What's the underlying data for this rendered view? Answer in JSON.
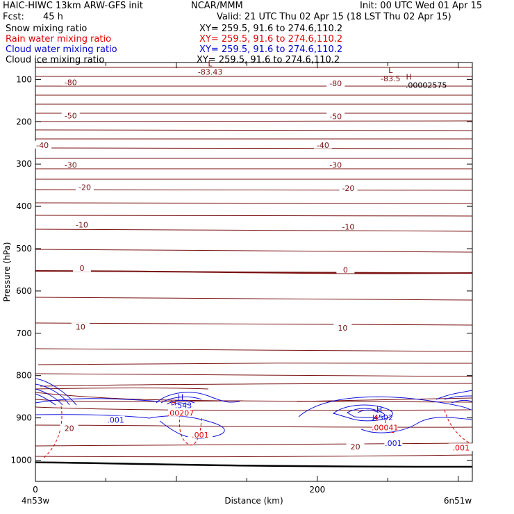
{
  "header": {
    "title": "HAIC-HIWC 13km ARW-GFS init",
    "org": "NCAR/MMM",
    "init": "Init: 00 UTC Wed 01 Apr 15",
    "fcst_label": "Fcst:",
    "fcst_value": "45 h",
    "valid": "Valid: 21 UTC Thu 02 Apr 15 (18 LST Thu 02 Apr 15)",
    "fields": [
      {
        "name": "Snow mixing ratio",
        "xy": "XY= 259.5, 91.6 to 274.6,110.2",
        "color": "#000000"
      },
      {
        "name": "Rain water mixing ratio",
        "xy": "XY= 259.5, 91.6 to 274.6,110.2",
        "color": "#e00000"
      },
      {
        "name": "Cloud water mixing ratio",
        "xy": "XY= 259.5, 91.6 to 274.6,110.2",
        "color": "#0000d0"
      },
      {
        "name": "Cloud ice mixing ratio",
        "xy": "XY= 259.5, 91.6 to 274.6,110.2",
        "color": "#000000"
      }
    ]
  },
  "chart_data": {
    "type": "contour",
    "xlabel": "Distance (km)",
    "ylabel": "Pressure (hPa)",
    "x_ticks": [
      "0",
      "200"
    ],
    "x_start_label": "4n53w",
    "x_end_label": "6n51w",
    "xlim": [
      0,
      310
    ],
    "y_ticks": [
      "100",
      "200",
      "300",
      "400",
      "500",
      "600",
      "700",
      "800",
      "900",
      "1000"
    ],
    "ylim": [
      1050,
      60
    ],
    "temperature_contours": {
      "color": "#7a1010",
      "labeled_levels": [
        -80,
        -50,
        -40,
        -30,
        -20,
        -10,
        0,
        10,
        20
      ],
      "labels": [
        {
          "text": "-80",
          "x": 25,
          "p": 107
        },
        {
          "text": "-80",
          "x": 213,
          "p": 109
        },
        {
          "text": "-50",
          "x": 25,
          "p": 186
        },
        {
          "text": "-50",
          "x": 213,
          "p": 187
        },
        {
          "text": "-40",
          "x": 5,
          "p": 255
        },
        {
          "text": "-40",
          "x": 204,
          "p": 255
        },
        {
          "text": "-30",
          "x": 25,
          "p": 302
        },
        {
          "text": "-30",
          "x": 213,
          "p": 302
        },
        {
          "text": "-20",
          "x": 35,
          "p": 355
        },
        {
          "text": "-20",
          "x": 222,
          "p": 357
        },
        {
          "text": "-10",
          "x": 33,
          "p": 443
        },
        {
          "text": "-10",
          "x": 222,
          "p": 448
        },
        {
          "text": "0",
          "x": 33,
          "p": 546
        },
        {
          "text": "0",
          "x": 220,
          "p": 550
        },
        {
          "text": "10",
          "x": 32,
          "p": 685
        },
        {
          "text": "10",
          "x": 218,
          "p": 687
        },
        {
          "text": "20",
          "x": 24,
          "p": 924
        },
        {
          "text": "20",
          "x": 227,
          "p": 968
        }
      ],
      "extrema": [
        {
          "type": "L",
          "value": "-83.43",
          "x": 124,
          "p": 69
        },
        {
          "type": "L",
          "value": "-83.5",
          "x": 252,
          "p": 85
        },
        {
          "type": "H",
          "value": ".00002575",
          "x": 265,
          "p": 100
        }
      ]
    },
    "cloud_water": {
      "color": "#1010e0",
      "labels": [
        {
          "text": ".001",
          "x": 57,
          "p": 905
        },
        {
          "text": ".001",
          "x": 254,
          "p": 960
        }
      ],
      "maxima": [
        {
          "type": "H",
          "value": ".543",
          "x": 103,
          "p": 857
        },
        {
          "type": "H",
          "value": ".4502",
          "x": 244,
          "p": 886
        }
      ]
    },
    "rain_water": {
      "color": "#e00000",
      "labels": [
        {
          "text": ".00207",
          "x": 103,
          "p": 888
        },
        {
          "text": ".001",
          "x": 117,
          "p": 940
        },
        {
          "text": ".00041",
          "x": 248,
          "p": 923
        },
        {
          "text": ".001",
          "x": 302,
          "p": 970
        }
      ],
      "maxima": [
        {
          "type": "H",
          "value": "",
          "x": 98,
          "p": 870
        },
        {
          "type": "H",
          "value": "",
          "x": 241,
          "p": 906
        }
      ]
    },
    "terrain_pressure": 1005
  }
}
